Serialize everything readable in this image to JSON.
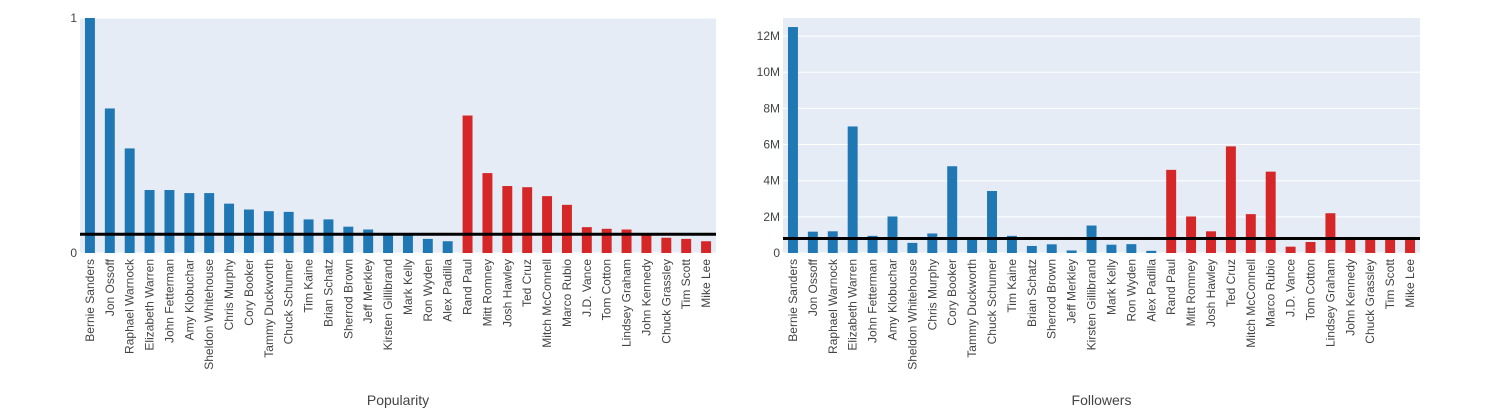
{
  "chart_data": [
    {
      "type": "bar",
      "xlabel": "Popularity",
      "ylabel": "",
      "ylim": [
        0,
        1
      ],
      "yticks": [
        0,
        1
      ],
      "ytick_labels": [
        "0",
        "1"
      ],
      "grid": true,
      "reference_line": 0.08,
      "categories": [
        "Bernie Sanders",
        "Jon Ossoff",
        "Raphael Warnock",
        "Elizabeth Warren",
        "John Fetterman",
        "Amy Klobuchar",
        "Sheldon Whitehouse",
        "Chris Murphy",
        "Cory Booker",
        "Tammy Duckworth",
        "Chuck Schumer",
        "Tim Kaine",
        "Brian Schatz",
        "Sherrod Brown",
        "Jeff Merkley",
        "Kirsten Gillibrand",
        "Mark Kelly",
        "Ron Wyden",
        "Alex Padilla",
        "Rand Paul",
        "Mitt Romney",
        "Josh Hawley",
        "Ted Cruz",
        "Mitch McConnell",
        "Marco Rubio",
        "J.D. Vance",
        "Tom Cotton",
        "Lindsey Graham",
        "John Kennedy",
        "Chuck Grassley",
        "Tim Scott",
        "Mike Lee"
      ],
      "values": [
        1.0,
        0.615,
        0.445,
        0.268,
        0.268,
        0.255,
        0.255,
        0.21,
        0.185,
        0.178,
        0.175,
        0.143,
        0.143,
        0.112,
        0.1,
        0.082,
        0.08,
        0.06,
        0.05,
        0.585,
        0.34,
        0.285,
        0.28,
        0.242,
        0.205,
        0.11,
        0.103,
        0.1,
        0.075,
        0.065,
        0.06,
        0.05
      ],
      "colors": [
        "#1f77b4",
        "#1f77b4",
        "#1f77b4",
        "#1f77b4",
        "#1f77b4",
        "#1f77b4",
        "#1f77b4",
        "#1f77b4",
        "#1f77b4",
        "#1f77b4",
        "#1f77b4",
        "#1f77b4",
        "#1f77b4",
        "#1f77b4",
        "#1f77b4",
        "#1f77b4",
        "#1f77b4",
        "#1f77b4",
        "#1f77b4",
        "#d62728",
        "#d62728",
        "#d62728",
        "#d62728",
        "#d62728",
        "#d62728",
        "#d62728",
        "#d62728",
        "#d62728",
        "#d62728",
        "#d62728",
        "#d62728",
        "#d62728"
      ]
    },
    {
      "type": "bar",
      "xlabel": "Followers",
      "ylabel": "",
      "ylim": [
        0,
        13000000
      ],
      "yticks": [
        0,
        2000000,
        4000000,
        6000000,
        8000000,
        10000000,
        12000000
      ],
      "ytick_labels": [
        "0",
        "2M",
        "4M",
        "6M",
        "8M",
        "10M",
        "12M"
      ],
      "grid": true,
      "reference_line": 800000,
      "categories": [
        "Bernie Sanders",
        "Jon Ossoff",
        "Raphael Warnock",
        "Elizabeth Warren",
        "John Fetterman",
        "Amy Klobuchar",
        "Sheldon Whitehouse",
        "Chris Murphy",
        "Cory Booker",
        "Tammy Duckworth",
        "Chuck Schumer",
        "Tim Kaine",
        "Brian Schatz",
        "Sherrod Brown",
        "Jeff Merkley",
        "Kirsten Gillibrand",
        "Mark Kelly",
        "Ron Wyden",
        "Alex Padilla",
        "Rand Paul",
        "Mitt Romney",
        "Josh Hawley",
        "Ted Cruz",
        "Mitch McConnell",
        "Marco Rubio",
        "J.D. Vance",
        "Tom Cotton",
        "Lindsey Graham",
        "John Kennedy",
        "Chuck Grassley",
        "Tim Scott",
        "Mike Lee"
      ],
      "values": [
        12500000,
        1180000,
        1200000,
        7000000,
        950000,
        2020000,
        560000,
        1080000,
        4800000,
        780000,
        3430000,
        950000,
        390000,
        480000,
        140000,
        1520000,
        460000,
        490000,
        120000,
        4600000,
        2020000,
        1200000,
        5900000,
        2150000,
        4500000,
        350000,
        610000,
        2200000,
        780000,
        780000,
        780000,
        780000
      ],
      "colors": [
        "#1f77b4",
        "#1f77b4",
        "#1f77b4",
        "#1f77b4",
        "#1f77b4",
        "#1f77b4",
        "#1f77b4",
        "#1f77b4",
        "#1f77b4",
        "#1f77b4",
        "#1f77b4",
        "#1f77b4",
        "#1f77b4",
        "#1f77b4",
        "#1f77b4",
        "#1f77b4",
        "#1f77b4",
        "#1f77b4",
        "#1f77b4",
        "#d62728",
        "#d62728",
        "#d62728",
        "#d62728",
        "#d62728",
        "#d62728",
        "#d62728",
        "#d62728",
        "#d62728",
        "#d62728",
        "#d62728",
        "#d62728",
        "#d62728"
      ]
    }
  ],
  "colors": {
    "plot_bg": "#e5ecf6",
    "grid": "#ffffff",
    "democrat": "#1f77b4",
    "republican": "#d62728",
    "reference_line": "#000000",
    "text": "#444444"
  }
}
